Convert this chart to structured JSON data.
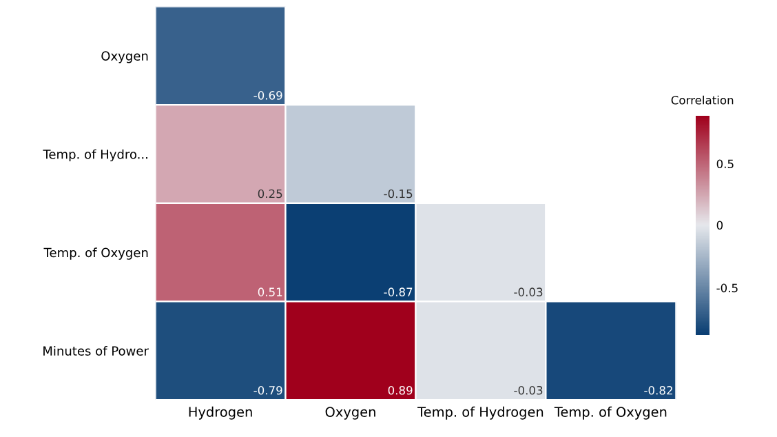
{
  "chart_data": {
    "type": "heatmap",
    "clabel": "Correlation",
    "categories": [
      "Hydrogen",
      "Oxygen",
      "Temp. of Hydrogen",
      "Temp. of Oxygen"
    ],
    "y_categories": [
      "Oxygen",
      "Temp. of Hydro...",
      "Temp. of Oxygen",
      "Minutes of Power"
    ],
    "cells": [
      [
        -0.69,
        null,
        null,
        null
      ],
      [
        0.25,
        -0.15,
        null,
        null
      ],
      [
        0.51,
        -0.87,
        -0.03,
        null
      ],
      [
        -0.79,
        0.89,
        -0.03,
        -0.82
      ]
    ],
    "clim": [
      -0.87,
      0.89
    ],
    "cticks": [
      -0.5,
      0,
      0.5
    ],
    "data_labels": true
  }
}
